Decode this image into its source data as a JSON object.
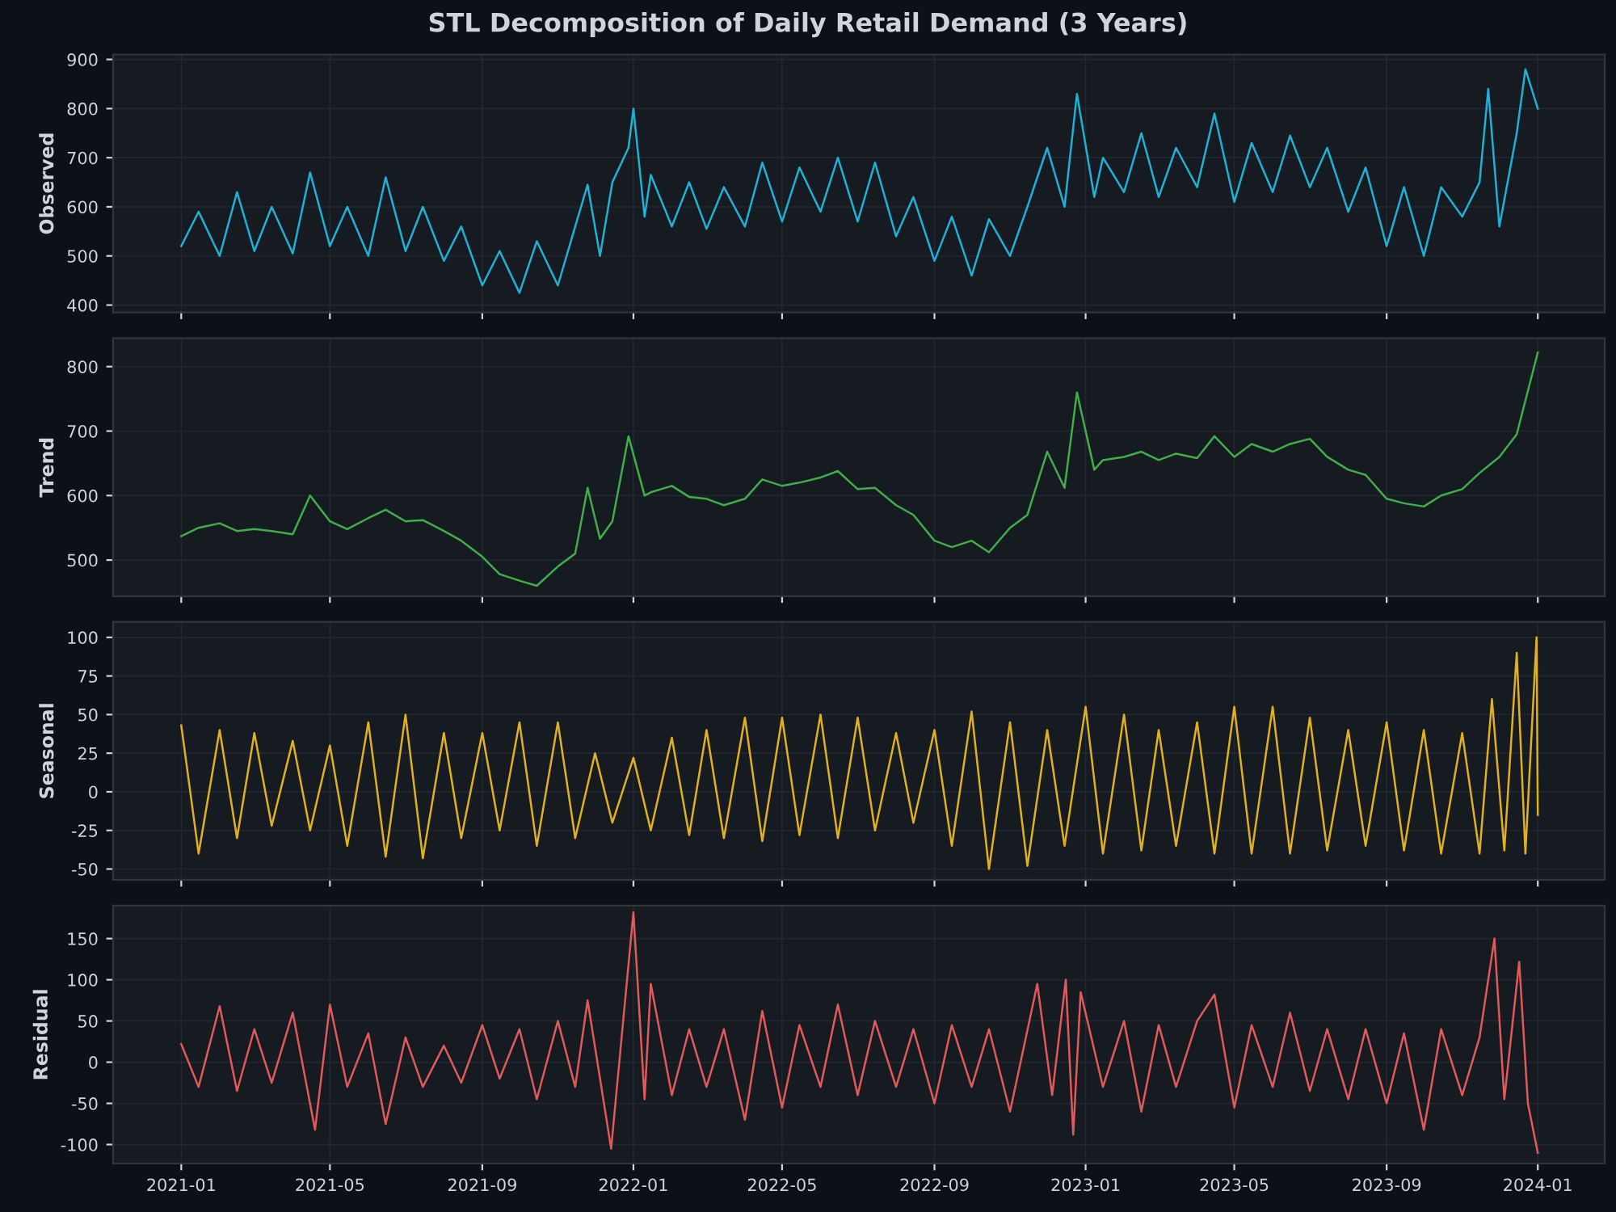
{
  "chart_data": [
    {
      "type": "line",
      "title": "STL Decomposition of Daily Retail Demand (3 Years)",
      "ylabel": "Observed",
      "tick_labels": "y",
      "grid": true,
      "xlim": [
        "2020-11-07",
        "2024-02-24"
      ],
      "xticks": [
        {
          "value": "2021-01-01",
          "label": null
        },
        {
          "value": "2021-05-01",
          "label": null
        },
        {
          "value": "2021-09-01",
          "label": null
        },
        {
          "value": "2022-01-01",
          "label": null
        },
        {
          "value": "2022-05-01",
          "label": null
        },
        {
          "value": "2022-09-01",
          "label": null
        },
        {
          "value": "2023-01-01",
          "label": null
        },
        {
          "value": "2023-05-01",
          "label": null
        },
        {
          "value": "2023-09-01",
          "label": null
        },
        {
          "value": "2024-01-01",
          "label": null
        }
      ],
      "ylim": [
        385,
        910
      ],
      "yticks": [
        400,
        500,
        600,
        700,
        800,
        900
      ],
      "x": [
        "2021-01-01",
        "2021-01-15",
        "2021-02-01",
        "2021-02-15",
        "2021-03-01",
        "2021-03-15",
        "2021-04-01",
        "2021-04-15",
        "2021-05-01",
        "2021-05-15",
        "2021-06-01",
        "2021-06-15",
        "2021-07-01",
        "2021-07-15",
        "2021-08-01",
        "2021-08-15",
        "2021-09-01",
        "2021-09-15",
        "2021-10-01",
        "2021-10-15",
        "2021-11-01",
        "2021-11-15",
        "2021-11-25",
        "2021-12-05",
        "2021-12-15",
        "2021-12-28",
        "2022-01-01",
        "2022-01-10",
        "2022-01-15",
        "2022-02-01",
        "2022-02-15",
        "2022-03-01",
        "2022-03-15",
        "2022-04-01",
        "2022-04-15",
        "2022-05-01",
        "2022-05-15",
        "2022-06-01",
        "2022-06-15",
        "2022-07-01",
        "2022-07-15",
        "2022-08-01",
        "2022-08-15",
        "2022-09-01",
        "2022-09-15",
        "2022-10-01",
        "2022-10-15",
        "2022-11-01",
        "2022-11-15",
        "2022-12-01",
        "2022-12-15",
        "2022-12-25",
        "2023-01-08",
        "2023-01-15",
        "2023-02-01",
        "2023-02-15",
        "2023-03-01",
        "2023-03-15",
        "2023-04-01",
        "2023-04-15",
        "2023-05-01",
        "2023-05-15",
        "2023-06-01",
        "2023-06-15",
        "2023-07-01",
        "2023-07-15",
        "2023-08-01",
        "2023-08-15",
        "2023-09-01",
        "2023-09-15",
        "2023-10-01",
        "2023-10-15",
        "2023-11-01",
        "2023-11-15",
        "2023-11-22",
        "2023-12-01",
        "2023-12-15",
        "2023-12-22",
        "2024-01-01"
      ],
      "series": [
        {
          "color": "#1fb0d6",
          "values": [
            520,
            590,
            500,
            630,
            510,
            600,
            505,
            670,
            520,
            600,
            500,
            660,
            510,
            600,
            490,
            560,
            440,
            510,
            425,
            530,
            440,
            560,
            645,
            500,
            650,
            720,
            800,
            580,
            665,
            560,
            650,
            555,
            640,
            560,
            690,
            570,
            680,
            590,
            700,
            570,
            690,
            540,
            620,
            490,
            580,
            460,
            575,
            500,
            600,
            720,
            600,
            830,
            620,
            700,
            630,
            750,
            620,
            720,
            640,
            790,
            610,
            730,
            630,
            745,
            640,
            720,
            590,
            680,
            520,
            640,
            500,
            640,
            580,
            650,
            840,
            560,
            750,
            880,
            800
          ]
        }
      ]
    },
    {
      "type": "line",
      "ylabel": "Trend",
      "tick_labels": "y",
      "grid": true,
      "xlim": [
        "2020-11-07",
        "2024-02-24"
      ],
      "xticks": [
        {
          "value": "2021-01-01",
          "label": null
        },
        {
          "value": "2021-05-01",
          "label": null
        },
        {
          "value": "2021-09-01",
          "label": null
        },
        {
          "value": "2022-01-01",
          "label": null
        },
        {
          "value": "2022-05-01",
          "label": null
        },
        {
          "value": "2022-09-01",
          "label": null
        },
        {
          "value": "2023-01-01",
          "label": null
        },
        {
          "value": "2023-05-01",
          "label": null
        },
        {
          "value": "2023-09-01",
          "label": null
        },
        {
          "value": "2024-01-01",
          "label": null
        }
      ],
      "ylim": [
        444,
        844
      ],
      "yticks": [
        500,
        600,
        700,
        800
      ],
      "x": [
        "2021-01-01",
        "2021-01-15",
        "2021-02-01",
        "2021-02-15",
        "2021-03-01",
        "2021-03-15",
        "2021-04-01",
        "2021-04-15",
        "2021-05-01",
        "2021-05-15",
        "2021-06-01",
        "2021-06-15",
        "2021-07-01",
        "2021-07-15",
        "2021-08-01",
        "2021-08-15",
        "2021-09-01",
        "2021-09-15",
        "2021-10-01",
        "2021-10-15",
        "2021-11-01",
        "2021-11-15",
        "2021-11-25",
        "2021-12-05",
        "2021-12-15",
        "2021-12-28",
        "2022-01-10",
        "2022-01-15",
        "2022-02-01",
        "2022-02-15",
        "2022-03-01",
        "2022-03-15",
        "2022-04-01",
        "2022-04-15",
        "2022-05-01",
        "2022-05-15",
        "2022-06-01",
        "2022-06-15",
        "2022-07-01",
        "2022-07-15",
        "2022-08-01",
        "2022-08-15",
        "2022-09-01",
        "2022-09-15",
        "2022-10-01",
        "2022-10-15",
        "2022-11-01",
        "2022-11-15",
        "2022-12-01",
        "2022-12-15",
        "2022-12-25",
        "2023-01-08",
        "2023-01-15",
        "2023-02-01",
        "2023-02-15",
        "2023-03-01",
        "2023-03-15",
        "2023-04-01",
        "2023-04-15",
        "2023-05-01",
        "2023-05-15",
        "2023-06-01",
        "2023-06-15",
        "2023-07-01",
        "2023-07-15",
        "2023-08-01",
        "2023-08-15",
        "2023-09-01",
        "2023-09-15",
        "2023-10-01",
        "2023-10-15",
        "2023-11-01",
        "2023-11-15",
        "2023-12-01",
        "2023-12-15",
        "2024-01-01"
      ],
      "series": [
        {
          "color": "#3fae49",
          "values": [
            537,
            550,
            557,
            545,
            548,
            545,
            540,
            600,
            560,
            548,
            565,
            578,
            560,
            562,
            545,
            530,
            505,
            478,
            468,
            460,
            490,
            510,
            612,
            533,
            560,
            692,
            600,
            605,
            615,
            598,
            595,
            585,
            595,
            625,
            615,
            620,
            628,
            638,
            610,
            612,
            585,
            570,
            530,
            520,
            530,
            512,
            550,
            570,
            668,
            612,
            760,
            640,
            655,
            660,
            668,
            655,
            665,
            658,
            692,
            660,
            680,
            668,
            680,
            688,
            660,
            640,
            632,
            595,
            588,
            583,
            600,
            610,
            635,
            660,
            695,
            822
          ]
        }
      ]
    },
    {
      "type": "line",
      "ylabel": "Seasonal",
      "tick_labels": "y",
      "grid": true,
      "xlim": [
        "2020-11-07",
        "2024-02-24"
      ],
      "xticks": [
        {
          "value": "2021-01-01",
          "label": null
        },
        {
          "value": "2021-05-01",
          "label": null
        },
        {
          "value": "2021-09-01",
          "label": null
        },
        {
          "value": "2022-01-01",
          "label": null
        },
        {
          "value": "2022-05-01",
          "label": null
        },
        {
          "value": "2022-09-01",
          "label": null
        },
        {
          "value": "2023-01-01",
          "label": null
        },
        {
          "value": "2023-05-01",
          "label": null
        },
        {
          "value": "2023-09-01",
          "label": null
        },
        {
          "value": "2024-01-01",
          "label": null
        }
      ],
      "ylim": [
        -57,
        110
      ],
      "yticks": [
        -50,
        -25,
        0,
        25,
        50,
        75,
        100
      ],
      "x": [
        "2021-01-01",
        "2021-01-15",
        "2021-02-01",
        "2021-02-15",
        "2021-03-01",
        "2021-03-15",
        "2021-04-01",
        "2021-04-15",
        "2021-05-01",
        "2021-05-15",
        "2021-06-01",
        "2021-06-15",
        "2021-07-01",
        "2021-07-15",
        "2021-08-01",
        "2021-08-15",
        "2021-09-01",
        "2021-09-15",
        "2021-10-01",
        "2021-10-15",
        "2021-11-01",
        "2021-11-15",
        "2021-12-01",
        "2021-12-15",
        "2022-01-01",
        "2022-01-15",
        "2022-02-01",
        "2022-02-15",
        "2022-03-01",
        "2022-03-15",
        "2022-04-01",
        "2022-04-15",
        "2022-05-01",
        "2022-05-15",
        "2022-06-01",
        "2022-06-15",
        "2022-07-01",
        "2022-07-15",
        "2022-08-01",
        "2022-08-15",
        "2022-09-01",
        "2022-09-15",
        "2022-10-01",
        "2022-10-15",
        "2022-11-01",
        "2022-11-15",
        "2022-12-01",
        "2022-12-15",
        "2023-01-01",
        "2023-01-15",
        "2023-02-01",
        "2023-02-15",
        "2023-03-01",
        "2023-03-15",
        "2023-04-01",
        "2023-04-15",
        "2023-05-01",
        "2023-05-15",
        "2023-06-01",
        "2023-06-15",
        "2023-07-01",
        "2023-07-15",
        "2023-08-01",
        "2023-08-15",
        "2023-09-01",
        "2023-09-15",
        "2023-10-01",
        "2023-10-15",
        "2023-11-01",
        "2023-11-15",
        "2023-11-25",
        "2023-12-05",
        "2023-12-15",
        "2023-12-22",
        "2023-12-31",
        "2024-01-01"
      ],
      "series": [
        {
          "color": "#e0b020",
          "values": [
            43,
            -40,
            40,
            -30,
            38,
            -22,
            33,
            -25,
            30,
            -35,
            45,
            -42,
            50,
            -43,
            38,
            -30,
            38,
            -25,
            45,
            -35,
            45,
            -30,
            25,
            -20,
            22,
            -25,
            35,
            -28,
            40,
            -30,
            48,
            -32,
            48,
            -28,
            50,
            -30,
            48,
            -25,
            38,
            -20,
            40,
            -35,
            52,
            -50,
            45,
            -48,
            40,
            -35,
            55,
            -40,
            50,
            -38,
            40,
            -35,
            45,
            -40,
            55,
            -40,
            55,
            -40,
            48,
            -38,
            40,
            -35,
            45,
            -38,
            40,
            -40,
            38,
            -40,
            60,
            -38,
            90,
            -40,
            100,
            -15
          ]
        }
      ]
    },
    {
      "type": "line",
      "ylabel": "Residual",
      "grid": true,
      "xlim": [
        "2020-11-07",
        "2024-02-24"
      ],
      "xticks": [
        {
          "value": "2021-01-01",
          "label": "2021-01"
        },
        {
          "value": "2021-05-01",
          "label": "2021-05"
        },
        {
          "value": "2021-09-01",
          "label": "2021-09"
        },
        {
          "value": "2022-01-01",
          "label": "2022-01"
        },
        {
          "value": "2022-05-01",
          "label": "2022-05"
        },
        {
          "value": "2022-09-01",
          "label": "2022-09"
        },
        {
          "value": "2023-01-01",
          "label": "2023-01"
        },
        {
          "value": "2023-05-01",
          "label": "2023-05"
        },
        {
          "value": "2023-09-01",
          "label": "2023-09"
        },
        {
          "value": "2024-01-01",
          "label": "2024-01"
        }
      ],
      "ylim": [
        -123,
        190
      ],
      "yticks": [
        -100,
        -50,
        0,
        50,
        100,
        150
      ],
      "x": [
        "2021-01-01",
        "2021-01-15",
        "2021-02-01",
        "2021-02-15",
        "2021-03-01",
        "2021-03-15",
        "2021-04-01",
        "2021-04-19",
        "2021-05-01",
        "2021-05-15",
        "2021-06-01",
        "2021-06-15",
        "2021-07-01",
        "2021-07-15",
        "2021-08-01",
        "2021-08-15",
        "2021-09-01",
        "2021-09-15",
        "2021-10-01",
        "2021-10-15",
        "2021-11-01",
        "2021-11-15",
        "2021-11-25",
        "2021-12-14",
        "2022-01-01",
        "2022-01-10",
        "2022-01-15",
        "2022-02-01",
        "2022-02-15",
        "2022-03-01",
        "2022-03-15",
        "2022-04-01",
        "2022-04-15",
        "2022-05-01",
        "2022-05-15",
        "2022-06-01",
        "2022-06-15",
        "2022-07-01",
        "2022-07-15",
        "2022-08-01",
        "2022-08-15",
        "2022-09-01",
        "2022-09-15",
        "2022-10-01",
        "2022-10-15",
        "2022-11-01",
        "2022-11-23",
        "2022-12-05",
        "2022-12-16",
        "2022-12-22",
        "2022-12-28",
        "2023-01-15",
        "2023-02-01",
        "2023-02-15",
        "2023-03-01",
        "2023-03-15",
        "2023-04-01",
        "2023-04-15",
        "2023-05-01",
        "2023-05-15",
        "2023-06-01",
        "2023-06-15",
        "2023-07-01",
        "2023-07-15",
        "2023-08-01",
        "2023-08-15",
        "2023-09-01",
        "2023-09-15",
        "2023-10-01",
        "2023-10-15",
        "2023-11-01",
        "2023-11-15",
        "2023-11-27",
        "2023-12-05",
        "2023-12-17",
        "2023-12-24",
        "2024-01-01"
      ],
      "series": [
        {
          "color": "#e05a5a",
          "values": [
            22,
            -30,
            68,
            -35,
            40,
            -25,
            60,
            -82,
            70,
            -30,
            35,
            -75,
            30,
            -30,
            20,
            -25,
            45,
            -20,
            40,
            -45,
            50,
            -30,
            75,
            -105,
            182,
            -45,
            95,
            -40,
            40,
            -30,
            40,
            -70,
            62,
            -55,
            45,
            -30,
            70,
            -40,
            50,
            -30,
            40,
            -50,
            45,
            -30,
            40,
            -60,
            95,
            -40,
            100,
            -88,
            85,
            -30,
            50,
            -60,
            45,
            -30,
            50,
            82,
            -55,
            45,
            -30,
            60,
            -35,
            40,
            -45,
            40,
            -50,
            35,
            -82,
            40,
            -40,
            30,
            150,
            -45,
            122,
            -50,
            -110
          ]
        }
      ]
    }
  ]
}
